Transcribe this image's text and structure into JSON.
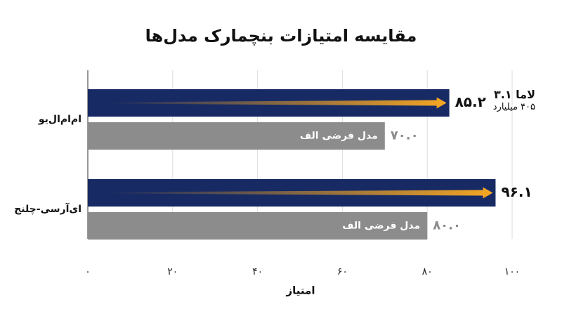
{
  "chart_data": {
    "type": "hbar",
    "title": "مقایسه امتیازات بنچمارک مدل‌ها",
    "x_label": "امتیاز",
    "categories": [
      "ام‌ام‌ال‌یو",
      "ای‌آرسی-چلنج"
    ],
    "series": [
      {
        "name": "لاما ۳.۱\n۴۰۵ میلیارد",
        "color": "#172a63",
        "values": [
          85.2,
          96.1
        ],
        "value_labels": [
          "۸۵.۲",
          "۹۶.۱"
        ]
      },
      {
        "name": "مدل فرضی الف",
        "color": "#8c8c8c",
        "values": [
          70.0,
          80.0
        ],
        "value_labels": [
          "۷۰.۰",
          "۸۰.۰"
        ]
      }
    ],
    "xlim": [
      0,
      100
    ],
    "xticks": [
      {
        "value": 0,
        "label": "۰"
      },
      {
        "value": 20,
        "label": "۲۰"
      },
      {
        "value": 40,
        "label": "۴۰"
      },
      {
        "value": 60,
        "label": "۶۰"
      },
      {
        "value": 80,
        "label": "۸۰"
      },
      {
        "value": 100,
        "label": "۱۰۰"
      }
    ],
    "grid": true
  }
}
